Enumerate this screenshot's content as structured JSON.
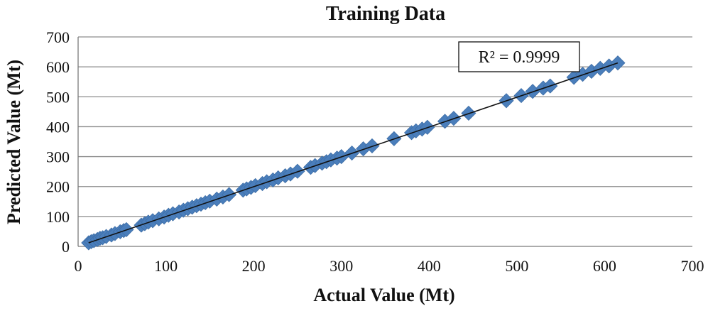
{
  "chart_data": {
    "type": "scatter",
    "title": "Training Data",
    "xlabel": "Actual Value (Mt)",
    "ylabel": "Predicted Value (Mt)",
    "xlim": [
      0,
      700
    ],
    "ylim": [
      0,
      700
    ],
    "xticks": [
      0,
      100,
      200,
      300,
      400,
      500,
      600,
      700
    ],
    "yticks": [
      0,
      100,
      200,
      300,
      400,
      500,
      600,
      700
    ],
    "grid": "horizontal",
    "legend": "none",
    "marker_color": "#4a7ebb",
    "trendline_color": "#111111",
    "annotation": "R² = 0.9999",
    "trendline": {
      "x": [
        12,
        615
      ],
      "y": [
        12,
        613
      ]
    },
    "x": [
      12,
      15,
      18,
      22,
      25,
      28,
      32,
      38,
      42,
      48,
      52,
      55,
      72,
      76,
      80,
      85,
      92,
      98,
      103,
      108,
      115,
      120,
      125,
      130,
      135,
      140,
      145,
      150,
      158,
      165,
      172,
      188,
      192,
      197,
      202,
      210,
      215,
      222,
      228,
      236,
      242,
      250,
      265,
      270,
      278,
      283,
      288,
      295,
      300,
      312,
      325,
      335,
      360,
      380,
      385,
      392,
      398,
      418,
      428,
      445,
      488,
      505,
      518,
      530,
      538,
      565,
      575,
      585,
      595,
      605,
      615
    ],
    "y": [
      12,
      16,
      19,
      23,
      27,
      29,
      33,
      38,
      43,
      49,
      53,
      56,
      71,
      76,
      81,
      86,
      92,
      98,
      104,
      109,
      115,
      121,
      126,
      131,
      136,
      141,
      146,
      151,
      158,
      165,
      173,
      188,
      192,
      197,
      203,
      210,
      216,
      222,
      229,
      236,
      242,
      251,
      264,
      270,
      278,
      283,
      289,
      295,
      300,
      312,
      326,
      336,
      360,
      380,
      386,
      392,
      398,
      418,
      428,
      445,
      487,
      504,
      518,
      529,
      536,
      565,
      575,
      585,
      595,
      603,
      613
    ]
  }
}
